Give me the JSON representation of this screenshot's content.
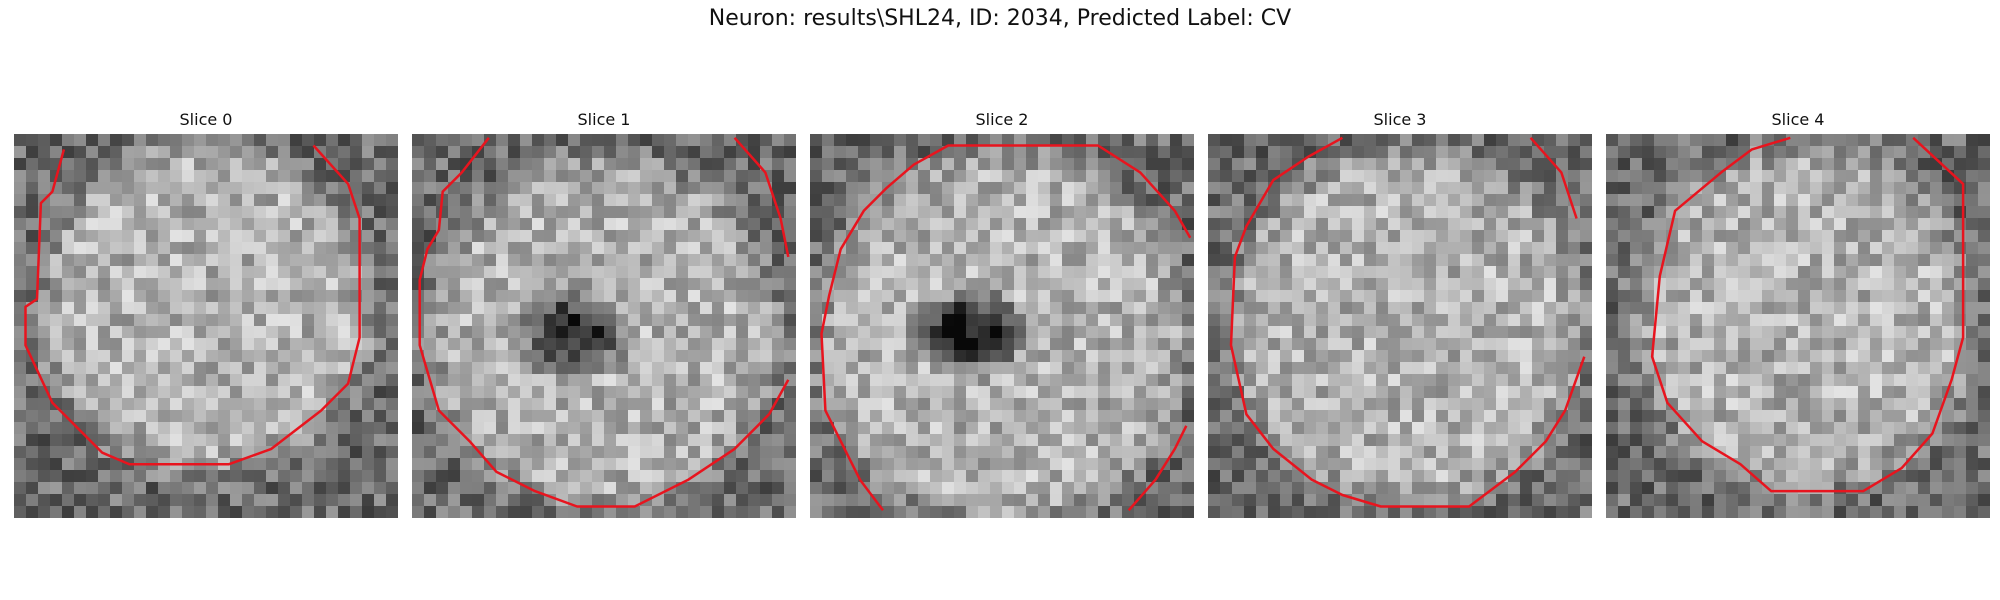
{
  "title": "Neuron: results\\SHL24, ID: 2034, Predicted Label: CV",
  "panels": [
    {
      "title": "Slice 0"
    },
    {
      "title": "Slice 1"
    },
    {
      "title": "Slice 2"
    },
    {
      "title": "Slice 3"
    },
    {
      "title": "Slice 4"
    }
  ],
  "colors": {
    "contour": "#e8141e"
  }
}
